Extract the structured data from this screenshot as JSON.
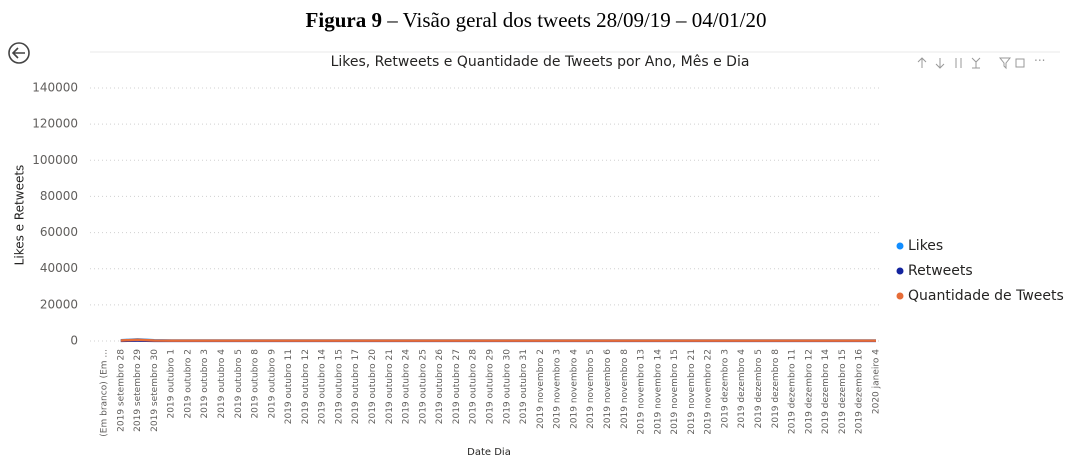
{
  "caption": {
    "label": "Figura 9",
    "text": " – Visão geral dos tweets 28/09/19 – 04/01/20"
  },
  "chart_data": {
    "type": "line",
    "title": "Likes, Retweets e Quantidade de Tweets por Ano, Mês e Dia",
    "y_label": "Likes e Retweets",
    "x_label": "Date Dia",
    "categories": [
      "(Em branco) (Em ...",
      "2019 setembro 28",
      "2019 setembro 29",
      "2019 setembro 30",
      "2019 outubro 1",
      "2019 outubro 2",
      "2019 outubro 3",
      "2019 outubro 4",
      "2019 outubro 5",
      "2019 outubro 8",
      "2019 outubro 9",
      "2019 outubro 11",
      "2019 outubro 12",
      "2019 outubro 14",
      "2019 outubro 15",
      "2019 outubro 17",
      "2019 outubro 20",
      "2019 outubro 21",
      "2019 outubro 24",
      "2019 outubro 25",
      "2019 outubro 26",
      "2019 outubro 27",
      "2019 outubro 28",
      "2019 outubro 29",
      "2019 outubro 30",
      "2019 outubro 31",
      "2019 novembro 2",
      "2019 novembro 3",
      "2019 novembro 4",
      "2019 novembro 5",
      "2019 novembro 6",
      "2019 novembro 8",
      "2019 novembro 13",
      "2019 novembro 14",
      "2019 novembro 15",
      "2019 novembro 21",
      "2019 novembro 22",
      "2019 dezembro 3",
      "2019 dezembro 4",
      "2019 dezembro 5",
      "2019 dezembro 8",
      "2019 dezembro 11",
      "2019 dezembro 12",
      "2019 dezembro 14",
      "2019 dezembro 15",
      "2019 dezembro 16",
      "2020 janeiro 4"
    ],
    "series": [
      {
        "name": "Likes",
        "color": "#118DFF",
        "values": [
          null,
          400,
          900,
          400,
          250,
          250,
          250,
          250,
          250,
          250,
          250,
          250,
          250,
          250,
          250,
          250,
          250,
          250,
          250,
          250,
          250,
          250,
          250,
          250,
          250,
          250,
          250,
          250,
          250,
          250,
          250,
          250,
          250,
          250,
          250,
          250,
          250,
          250,
          250,
          250,
          250,
          250,
          250,
          250,
          250,
          250,
          250
        ]
      },
      {
        "name": "Retweets",
        "color": "#12239E",
        "values": [
          null,
          100,
          200,
          100,
          50,
          50,
          50,
          50,
          50,
          50,
          50,
          50,
          50,
          50,
          50,
          50,
          50,
          50,
          50,
          50,
          50,
          50,
          50,
          50,
          50,
          50,
          50,
          50,
          50,
          50,
          50,
          50,
          50,
          50,
          50,
          50,
          50,
          50,
          50,
          50,
          50,
          50,
          50,
          50,
          50,
          50,
          50
        ]
      },
      {
        "name": "Quantidade de Tweets",
        "color": "#E66C37",
        "values": [
          null,
          300,
          700,
          300,
          200,
          200,
          200,
          200,
          200,
          200,
          200,
          200,
          200,
          200,
          200,
          200,
          200,
          200,
          200,
          200,
          200,
          200,
          200,
          200,
          200,
          200,
          200,
          200,
          200,
          200,
          200,
          200,
          200,
          200,
          200,
          200,
          200,
          200,
          200,
          200,
          200,
          200,
          200,
          200,
          200,
          200,
          200
        ]
      }
    ],
    "ylim": [
      0,
      140000
    ],
    "yticks": [
      0,
      20000,
      40000,
      60000,
      80000,
      100000,
      120000,
      140000
    ],
    "grid": true,
    "legend": "right"
  }
}
